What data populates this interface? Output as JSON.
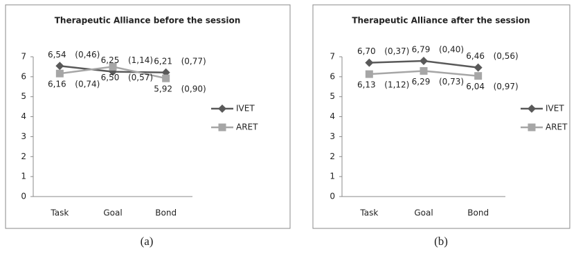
{
  "chart_data": [
    {
      "type": "line",
      "title": "Therapeutic Alliance before the session",
      "caption": "(a)",
      "categories": [
        "Task",
        "Goal",
        "Bond"
      ],
      "ylim": [
        0,
        7
      ],
      "yticks": [
        0,
        1,
        2,
        3,
        4,
        5,
        6,
        7
      ],
      "series": [
        {
          "name": "IVET",
          "color": "#595959",
          "marker": "diamond",
          "values": [
            6.54,
            6.25,
            6.21
          ],
          "value_labels": [
            "6,54",
            "6,25",
            "6,21"
          ],
          "sd_labels": [
            "(0,46)",
            "(1,14)",
            "(0,77)"
          ]
        },
        {
          "name": "ARET",
          "color": "#a6a6a6",
          "marker": "square",
          "values": [
            6.16,
            6.5,
            5.92
          ],
          "value_labels": [
            "6,16",
            "6,50",
            "5,92"
          ],
          "sd_labels": [
            "(0,74)",
            "(0,57)",
            "(0,90)"
          ]
        }
      ]
    },
    {
      "type": "line",
      "title": "Therapeutic Alliance after the session",
      "caption": "(b)",
      "categories": [
        "Task",
        "Goal",
        "Bond"
      ],
      "ylim": [
        0,
        7
      ],
      "yticks": [
        0,
        1,
        2,
        3,
        4,
        5,
        6,
        7
      ],
      "series": [
        {
          "name": "IVET",
          "color": "#595959",
          "marker": "diamond",
          "values": [
            6.7,
            6.79,
            6.46
          ],
          "value_labels": [
            "6,70",
            "6,79",
            "6,46"
          ],
          "sd_labels": [
            "(0,37)",
            "(0,40)",
            "(0,56)"
          ]
        },
        {
          "name": "ARET",
          "color": "#a6a6a6",
          "marker": "square",
          "values": [
            6.13,
            6.29,
            6.04
          ],
          "value_labels": [
            "6,13",
            "6,29",
            "6,04"
          ],
          "sd_labels": [
            "(1,12)",
            "(0,73)",
            "(0,97)"
          ]
        }
      ]
    }
  ]
}
